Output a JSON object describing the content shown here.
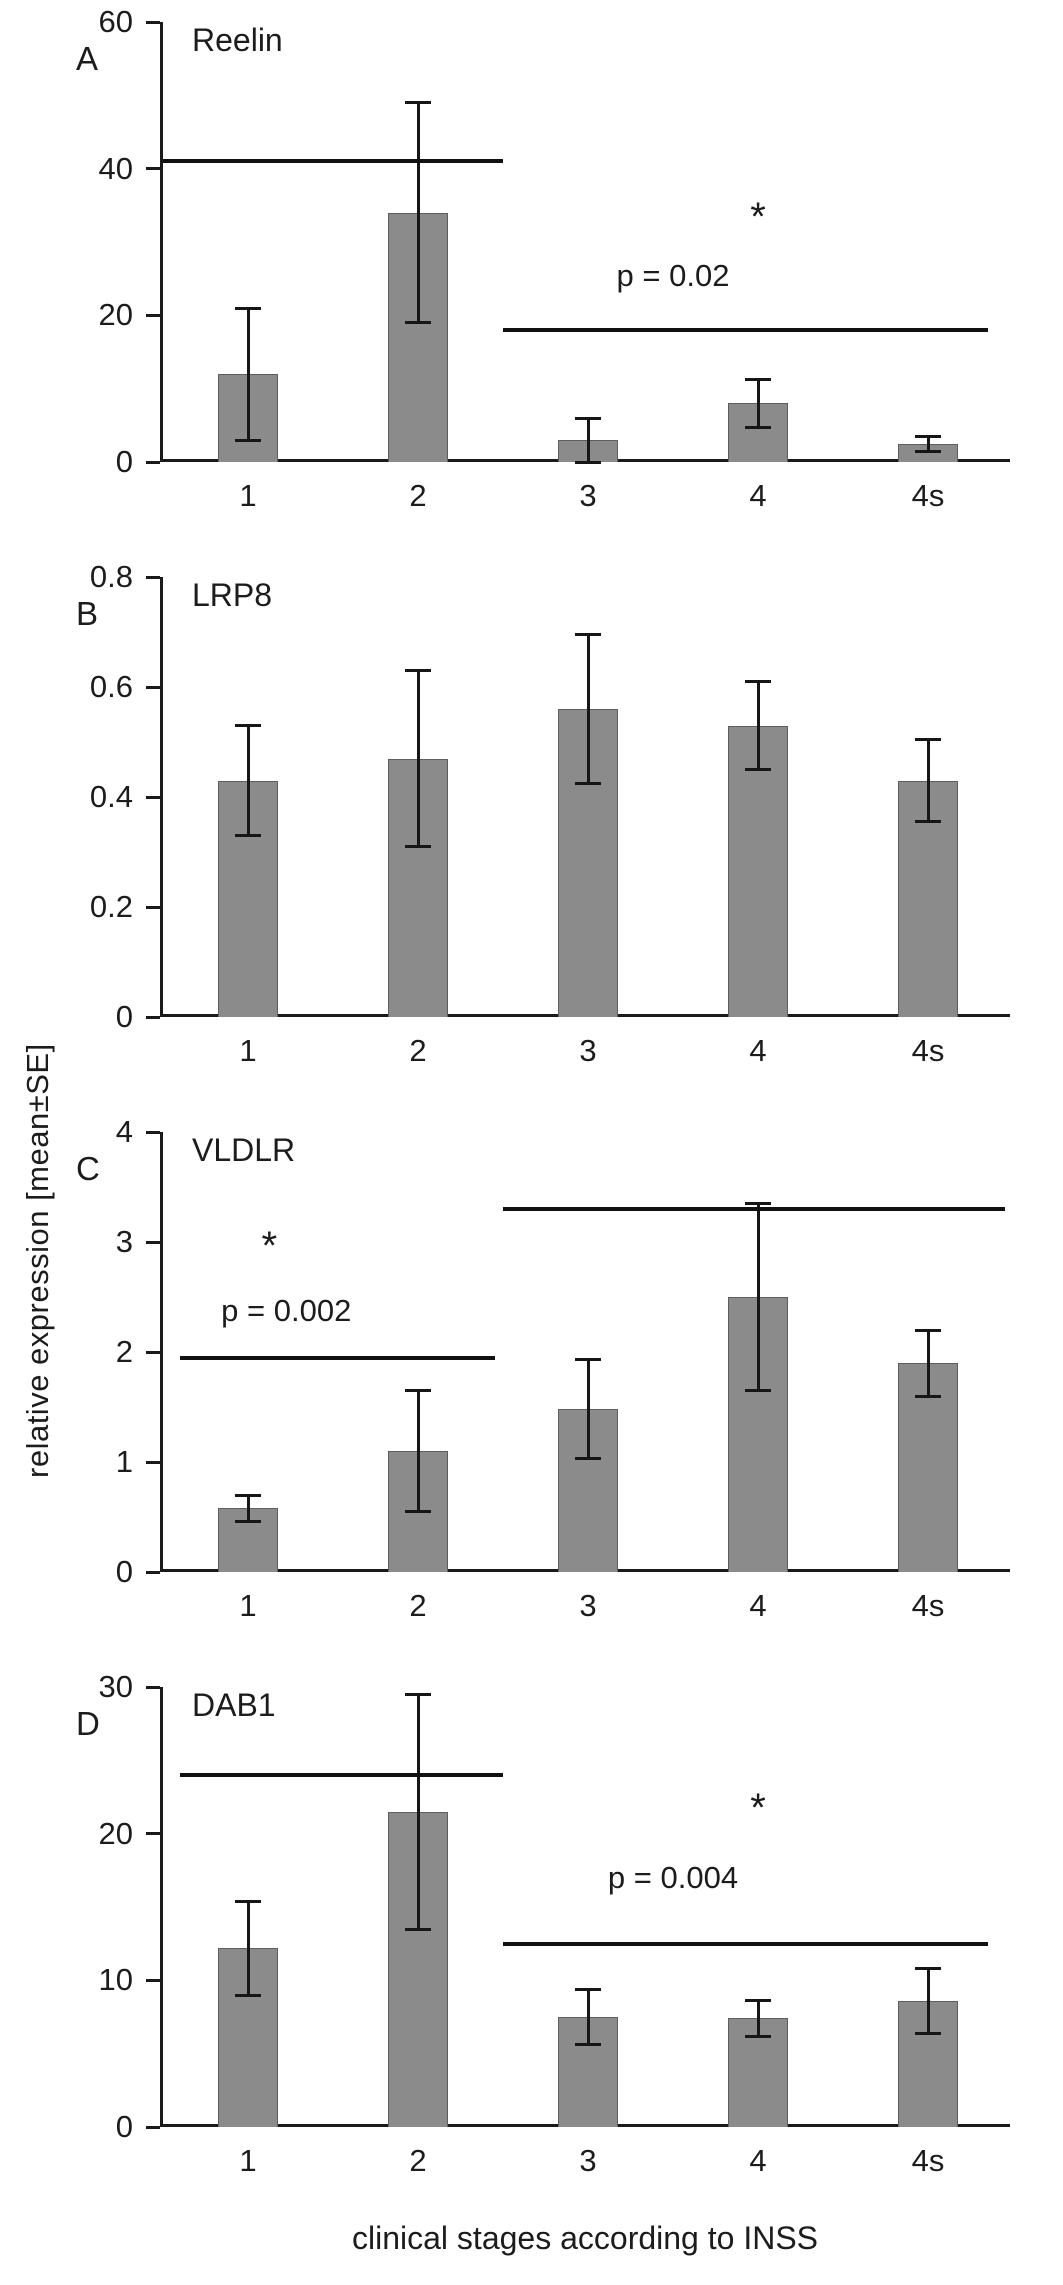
{
  "figure": {
    "ylabel": "relative expression [mean±SE]",
    "xlabel": "clinical stages according to INSS",
    "bar_color": "#8b8b8b",
    "axis_color": "#1a1a1a"
  },
  "chart_data": [
    {
      "type": "bar",
      "panel_label": "A",
      "title": "Reelin",
      "categories": [
        "1",
        "2",
        "3",
        "4",
        "4s"
      ],
      "values": [
        12,
        34,
        3,
        8,
        2.5
      ],
      "errors": [
        9,
        15,
        3,
        3.3,
        1
      ],
      "ylim": [
        0,
        60
      ],
      "yticks": [
        0,
        20,
        40,
        60
      ],
      "ytick_labels": [
        "0",
        "20",
        "40",
        "60"
      ],
      "annotations": {
        "lines": [
          {
            "x1": 0.0,
            "x2": 0.4,
            "y": 41
          },
          {
            "x1": 0.4,
            "x2": 0.97,
            "y": 18
          }
        ],
        "texts": [
          {
            "label": "*",
            "x": 0.7,
            "y": 31,
            "size": 40
          },
          {
            "label": "p = 0.02",
            "x": 0.6,
            "y": 23.5,
            "size": 31
          }
        ]
      }
    },
    {
      "type": "bar",
      "panel_label": "B",
      "title": "LRP8",
      "categories": [
        "1",
        "2",
        "3",
        "4",
        "4s"
      ],
      "values": [
        0.43,
        0.47,
        0.56,
        0.53,
        0.43
      ],
      "errors": [
        0.1,
        0.16,
        0.135,
        0.08,
        0.075
      ],
      "ylim": [
        0,
        0.8
      ],
      "yticks": [
        0,
        0.2,
        0.4,
        0.6,
        0.8
      ],
      "ytick_labels": [
        "0",
        "0.2",
        "0.4",
        "0.6",
        "0.8"
      ],
      "annotations": {
        "lines": [],
        "texts": []
      }
    },
    {
      "type": "bar",
      "panel_label": "C",
      "title": "VLDLR",
      "categories": [
        "1",
        "2",
        "3",
        "4",
        "4s"
      ],
      "values": [
        0.58,
        1.1,
        1.48,
        2.5,
        1.9
      ],
      "errors": [
        0.12,
        0.55,
        0.45,
        0.85,
        0.3
      ],
      "ylim": [
        0,
        4
      ],
      "yticks": [
        0,
        1,
        2,
        3,
        4
      ],
      "ytick_labels": [
        "0",
        "1",
        "2",
        "3",
        "4"
      ],
      "annotations": {
        "lines": [
          {
            "x1": 0.02,
            "x2": 0.39,
            "y": 1.95
          },
          {
            "x1": 0.4,
            "x2": 0.99,
            "y": 3.3
          }
        ],
        "texts": [
          {
            "label": "*",
            "x": 0.125,
            "y": 2.8,
            "size": 40
          },
          {
            "label": "p = 0.002",
            "x": 0.145,
            "y": 2.25,
            "size": 31
          }
        ]
      }
    },
    {
      "type": "bar",
      "panel_label": "D",
      "title": "DAB1",
      "categories": [
        "1",
        "2",
        "3",
        "4",
        "4s"
      ],
      "values": [
        12.2,
        21.5,
        7.5,
        7.4,
        8.6
      ],
      "errors": [
        3.2,
        8,
        1.9,
        1.2,
        2.2
      ],
      "ylim": [
        0,
        30
      ],
      "yticks": [
        0,
        10,
        20,
        30
      ],
      "ytick_labels": [
        "0",
        "10",
        "20",
        "30"
      ],
      "annotations": {
        "lines": [
          {
            "x1": 0.02,
            "x2": 0.4,
            "y": 24
          },
          {
            "x1": 0.4,
            "x2": 0.97,
            "y": 12.5
          }
        ],
        "texts": [
          {
            "label": "*",
            "x": 0.7,
            "y": 20.5,
            "size": 40
          },
          {
            "label": "p = 0.004",
            "x": 0.6,
            "y": 16,
            "size": 31
          }
        ]
      }
    }
  ]
}
